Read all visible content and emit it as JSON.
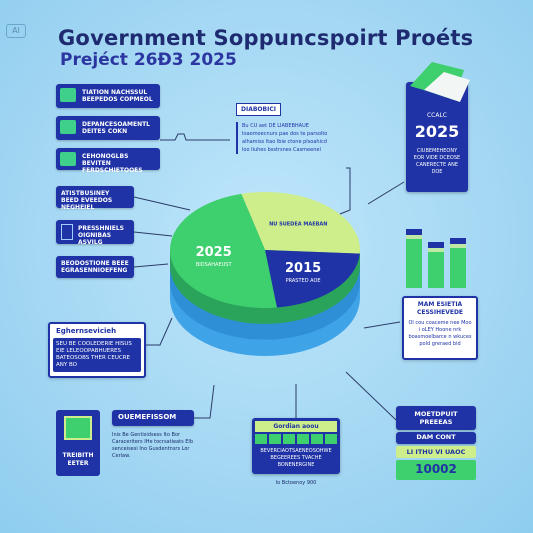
{
  "header": {
    "badge": "AI",
    "title": "Government Soppuncspoirt Proéts",
    "subtitle": "Prejéct 26Ð3 2025"
  },
  "legend": [
    {
      "icon": "money-icon",
      "text": "TIATION NACHSSUL BEEPEDOS COPMEOL"
    },
    {
      "icon": "building-icon",
      "text": "DEPANCESOAMENTL DEITES COKN"
    },
    {
      "icon": "shield-icon",
      "text": "CEHONOGLBS BEVITEN FERDSCHIETOOES"
    }
  ],
  "left_list": [
    {
      "text": "ATISTBUSINEY BEED EVEEDOS NEGHEIEL"
    },
    {
      "text": "PRESSHNIELS OIGNIBAS ASVILG",
      "icon": "grid-icon"
    },
    {
      "text": "BEODOSTIONE BEEE EGRASENNIOEFENG"
    }
  ],
  "left_card": {
    "head": "Eghernsevicieh",
    "body": "SEU BE COOLEDERIE HISUS EIE LELEOOPABHUERES BATEOSOBS THER CEUCRE ANY BO"
  },
  "bottom_left": {
    "head": "OUEMEFISSOM",
    "tile_text": "TREIBITH EETER",
    "body": "Inis Be Gentisidsess Ito Bor Caraceriters IHe tocrsatieats Elb senceisesi Ino Gusdentnsrs Lor Cerlaw."
  },
  "top_card": {
    "head": "DIABOBICI",
    "body": "Bu CU aet DE LIABEBHAUE tsaomoecnurs pae dos te parsolto alhamiss Itao lbie ctone plsoahicd loo Iiuhes bsstrsnes Casmeenel"
  },
  "right_panel": {
    "year_label": "CCALC",
    "year": "2025",
    "body": "CIUBEMEHEONY EOR VIDE DCEOSE CANERECTE ANE DOE"
  },
  "right_card": {
    "head": "MAM ESIETIA CESSIHEVEDE",
    "body": "Ol cou coaceme nee Moo i oLEY Hoone nrk boasmoelbarce n wkuces pold greraed bid"
  },
  "bottom_center": {
    "head": "Gordian aoou",
    "body": "BEVERCIAOTSAENEOSOHWE BEGEEREES TVACHE BONENERGINE",
    "caption": "Io Bctoenoy 900"
  },
  "bottom_right": {
    "label1": "MOETDPUIT PREEEAS",
    "label2": "DAM CONT",
    "label3": "LI ITHU VI UAOC",
    "value": "10002"
  },
  "colors": {
    "navy": "#1f33a6",
    "green": "#3ecf6e",
    "light_green": "#cdee8a",
    "blue": "#3fa3e8",
    "background": "#a3d7f3"
  },
  "chart_data": [
    {
      "type": "pie",
      "title": "",
      "slices": [
        {
          "label": "NU SUEDEA MAEBAN",
          "value": 30,
          "color": "#cdee8a"
        },
        {
          "label": "2015",
          "sublabel": "PRASTED AOE",
          "value": 22,
          "color": "#1f33a6"
        },
        {
          "label": "2025",
          "sublabel": "BIDSAHAEUST",
          "value": 48,
          "color": "#3ecf6e"
        }
      ]
    },
    {
      "type": "bar",
      "title": "",
      "categories": [
        "",
        "",
        ""
      ],
      "values": [
        95,
        75,
        80
      ],
      "ylim": [
        0,
        100
      ]
    }
  ]
}
